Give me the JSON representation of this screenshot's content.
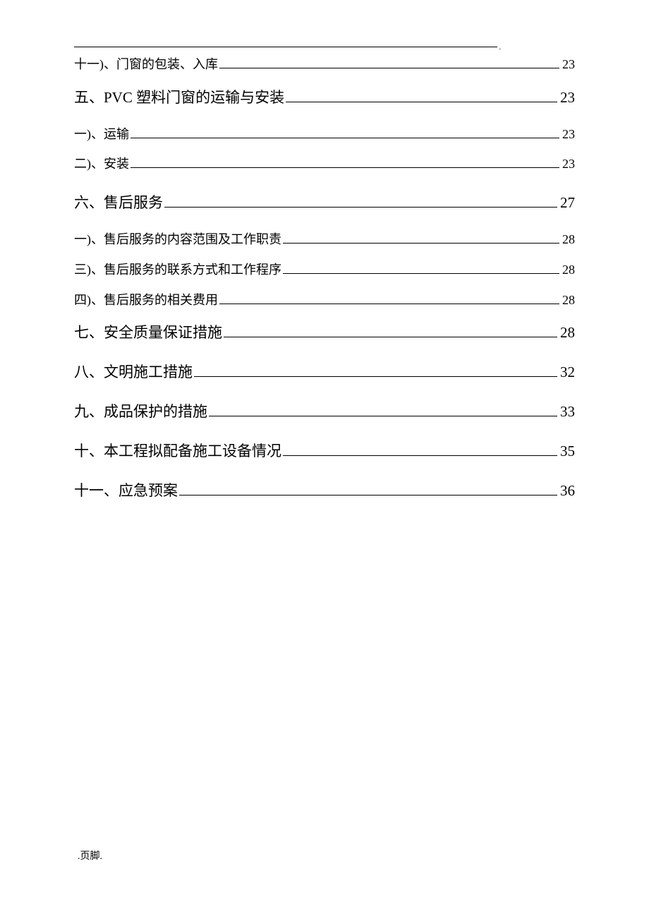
{
  "header_dot": ".",
  "toc": [
    {
      "label": "十一)、门窗的包装、入库",
      "page": "23",
      "level": "sub"
    },
    {
      "label": "五、PVC 塑料门窗的运输与安装",
      "page": "23",
      "level": "main"
    },
    {
      "label": "一)、运输",
      "page": "23",
      "level": "sub"
    },
    {
      "label": "二)、安装",
      "page": "23",
      "level": "sub"
    },
    {
      "label": "六、售后服务",
      "page": "27",
      "level": "main"
    },
    {
      "label": "一)、售后服务的内容范围及工作职责 ",
      "page": "28",
      "level": "sub"
    },
    {
      "label": "三)、售后服务的联系方式和工作程序 ",
      "page": "28",
      "level": "sub"
    },
    {
      "label": "四)、售后服务的相关费用 ",
      "page": "28",
      "level": "sub"
    },
    {
      "label": "七、安全质量保证措施",
      "page": "28",
      "level": "main"
    },
    {
      "label": "八、文明施工措施",
      "page": "32",
      "level": "main"
    },
    {
      "label": "九、成品保护的措施 ",
      "page": "33",
      "level": "main"
    },
    {
      "label": "十、本工程拟配备施工设备情况",
      "page": "35",
      "level": "main"
    },
    {
      "label": "十一、应急预案 ",
      "page": "36",
      "level": "main"
    }
  ],
  "footer": ".页脚."
}
